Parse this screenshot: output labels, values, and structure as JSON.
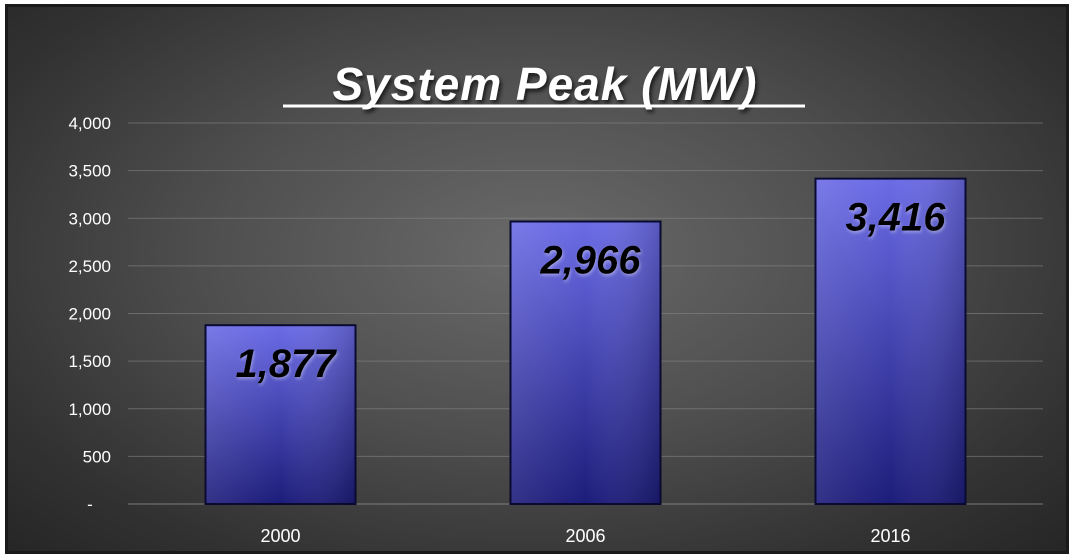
{
  "chart_data": {
    "type": "bar",
    "title": "System Peak (MW)",
    "categories": [
      "2000",
      "2006",
      "2016"
    ],
    "values": [
      1877,
      2966,
      3416
    ],
    "data_labels": [
      "1,877",
      "2,966",
      "3,416"
    ],
    "ylim": [
      0,
      4000
    ],
    "yticks": [
      0,
      500,
      1000,
      1500,
      2000,
      2500,
      3000,
      3500,
      4000
    ],
    "ytick_labels": [
      "-",
      "500",
      "1,000",
      "1,500",
      "2,000",
      "2,500",
      "3,000",
      "3,500",
      "4,000"
    ],
    "grid": true,
    "legend": "none",
    "colors": {
      "bar_top": "#6b6be6",
      "bar_bottom": "#1c1c7a",
      "bar_stroke": "#0a0a30",
      "text": "#ffffff",
      "data_label": "#000000"
    }
  }
}
